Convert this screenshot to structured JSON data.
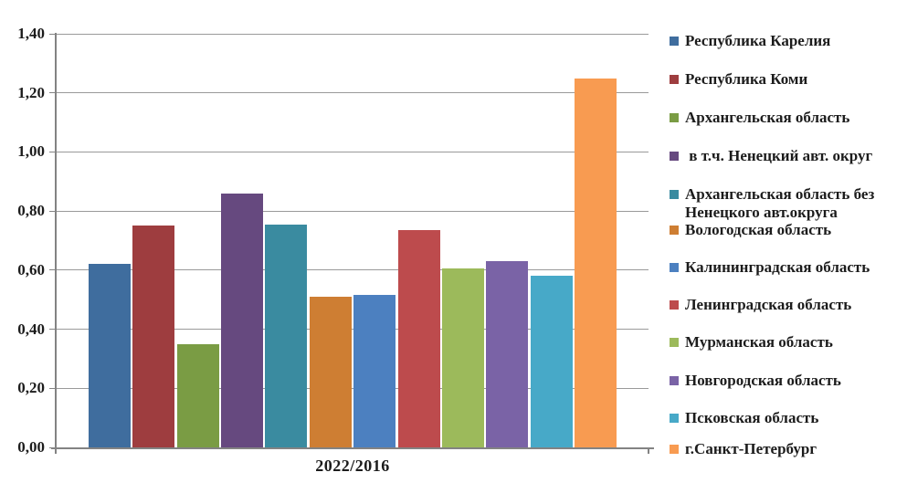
{
  "chart_data": {
    "type": "bar",
    "categories": [
      "2022/2016"
    ],
    "series": [
      {
        "name": "Республика Карелия",
        "value": 0.62,
        "color": "#3F6D9E"
      },
      {
        "name": "Республика Коми",
        "value": 0.75,
        "color": "#9E3D3F"
      },
      {
        "name": "Архангельская область",
        "value": 0.35,
        "color": "#7A9C44"
      },
      {
        "name": " в т.ч. Ненецкий авт. округ",
        "value": 0.86,
        "color": "#66497F"
      },
      {
        "name": "Архангельская область без Ненецкого авт.округа",
        "value": 0.755,
        "color": "#3A8BA0"
      },
      {
        "name": "Вологодская область",
        "value": 0.51,
        "color": "#CE7E33"
      },
      {
        "name": "Калининградская область",
        "value": 0.515,
        "color": "#4C80C0"
      },
      {
        "name": "Ленинградская область",
        "value": 0.735,
        "color": "#BD4B4D"
      },
      {
        "name": "Мурманская область",
        "value": 0.605,
        "color": "#9CBA5B"
      },
      {
        "name": "Новгородская область",
        "value": 0.63,
        "color": "#7A63A6"
      },
      {
        "name": "Псковская область",
        "value": 0.58,
        "color": "#47A9C8"
      },
      {
        "name": "г.Санкт-Петербург",
        "value": 1.25,
        "color": "#F89B51"
      }
    ],
    "xlabel": "2022/2016",
    "ylabel": "",
    "ylim": [
      0,
      1.4
    ],
    "ytick_step": 0.2,
    "yticks": [
      "0,00",
      "0,20",
      "0,40",
      "0,60",
      "0,80",
      "1,00",
      "1,20",
      "1,40"
    ],
    "legend_position": "right",
    "grid": true
  }
}
